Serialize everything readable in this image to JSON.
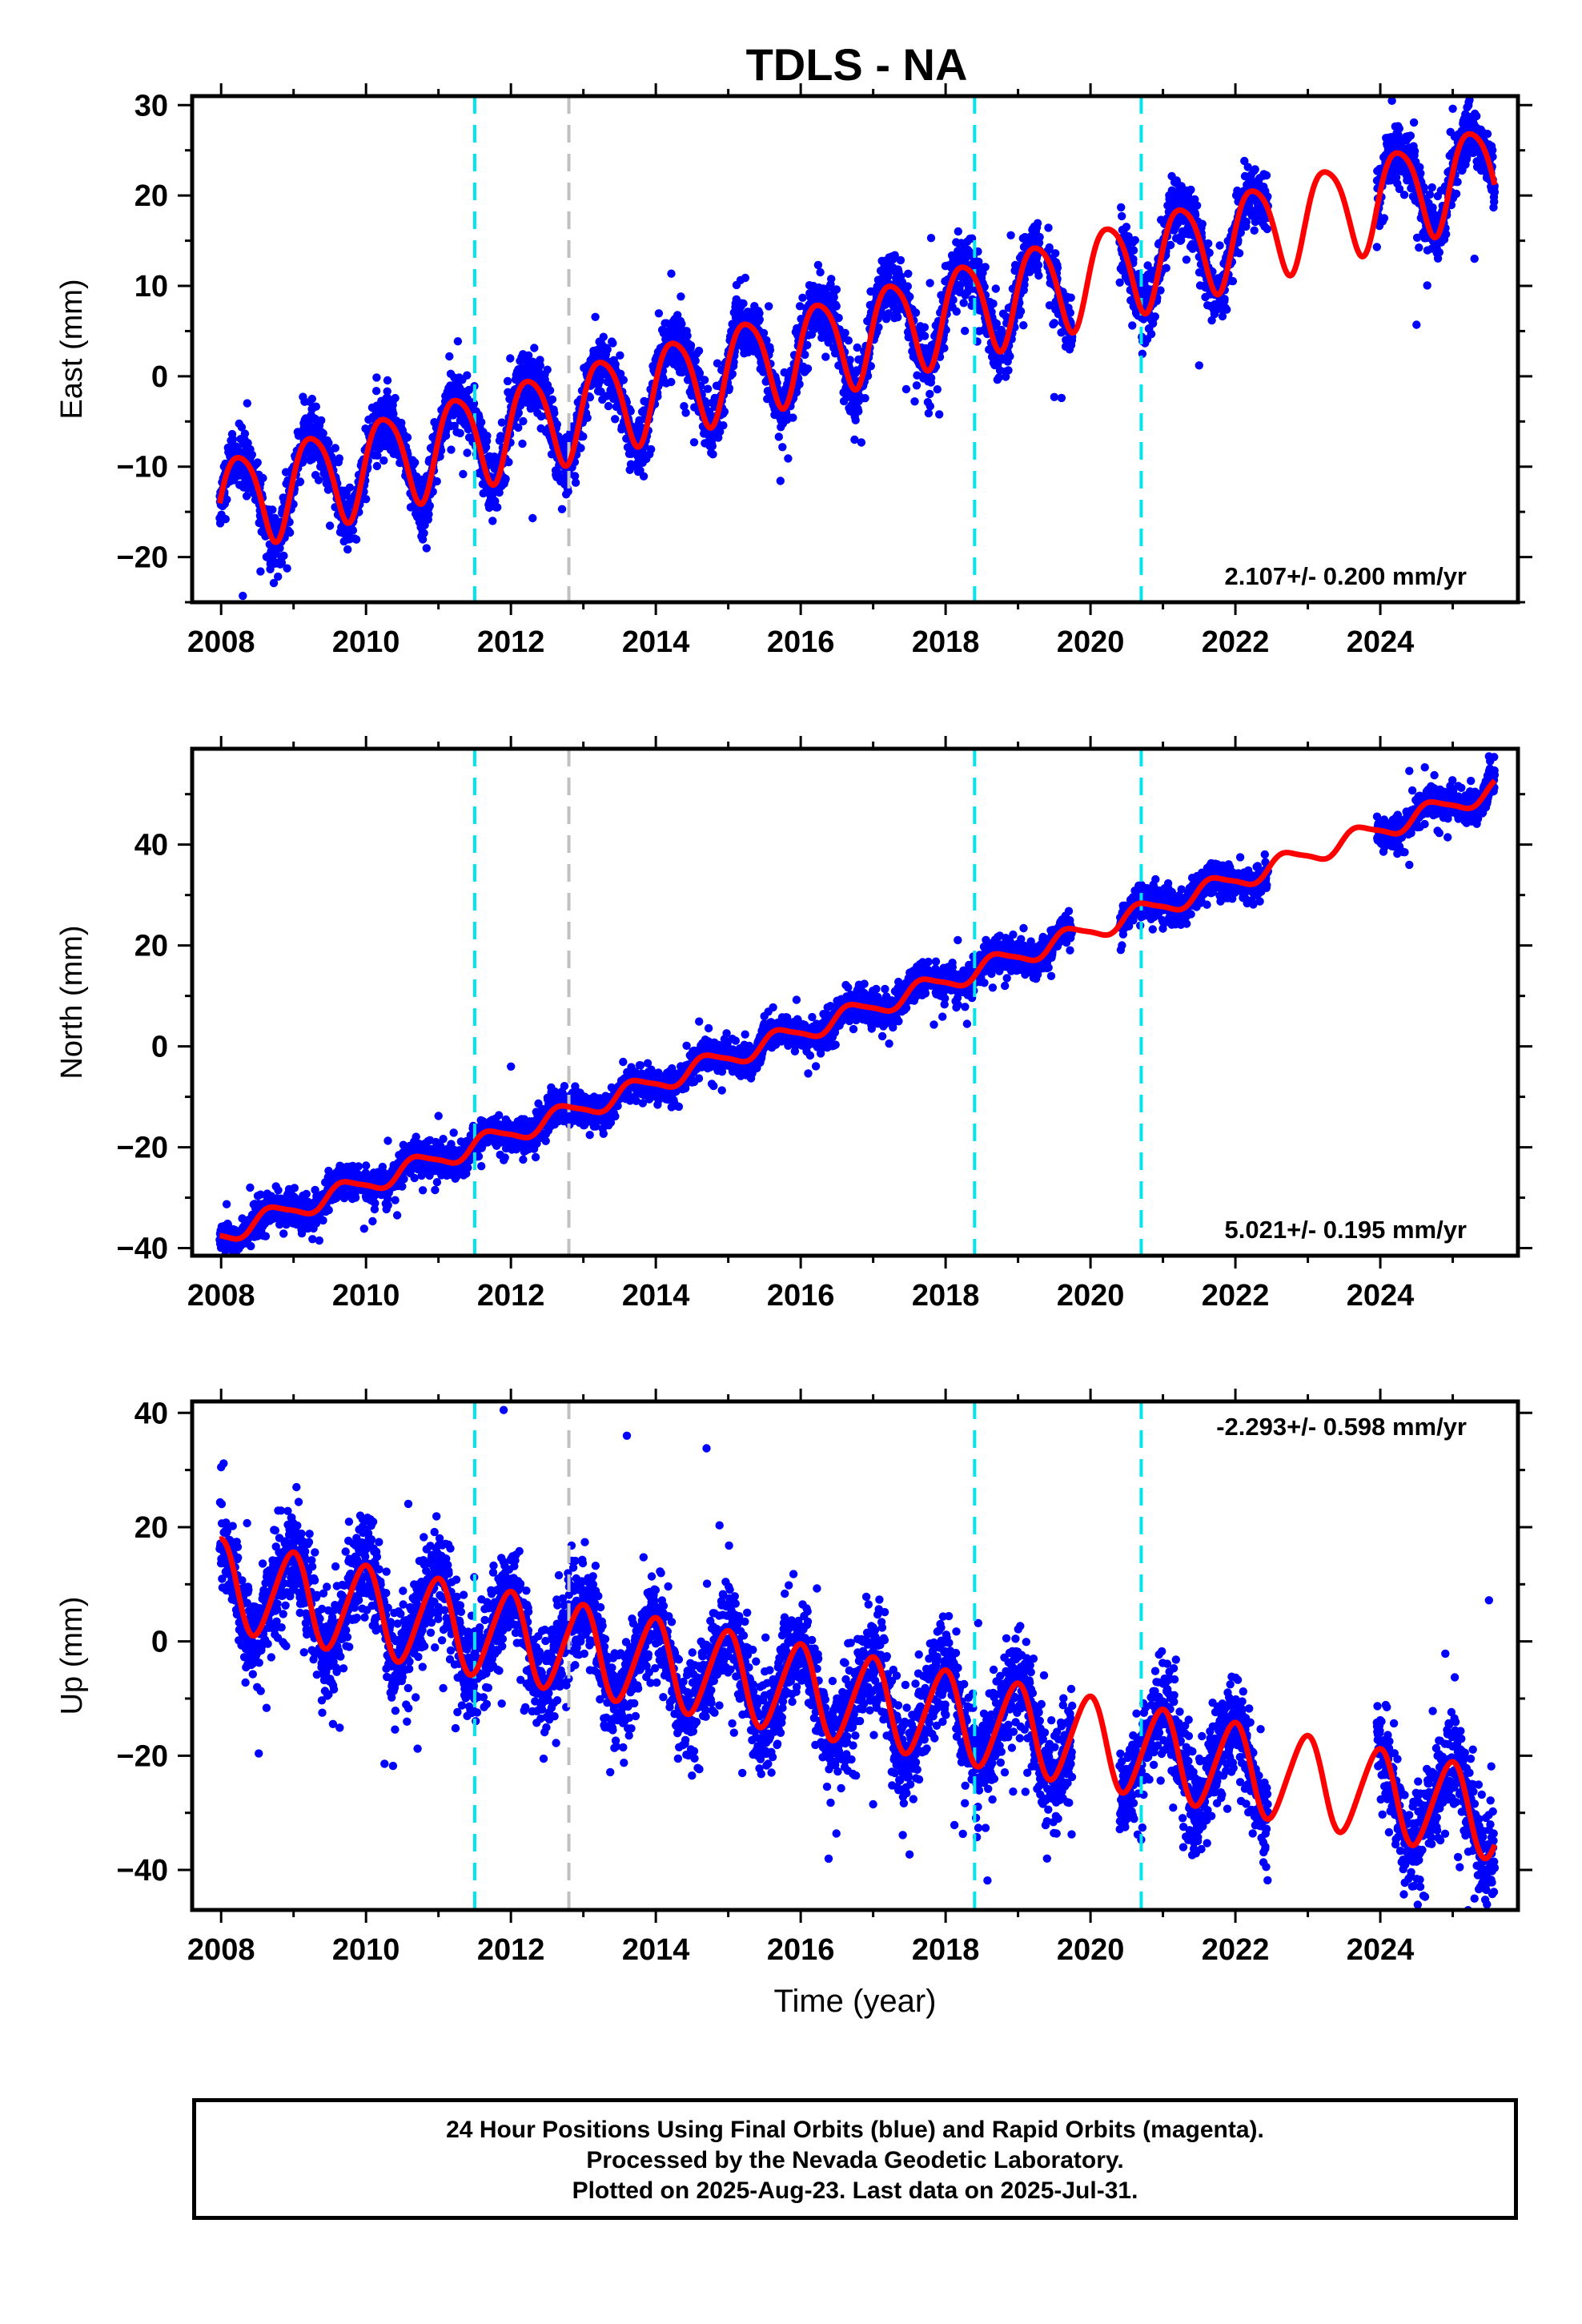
{
  "title": "TDLS - NA",
  "xlabel": "Time (year)",
  "footer": {
    "line1": "24 Hour Positions Using Final Orbits (blue) and Rapid Orbits (magenta).",
    "line2": "Processed by the Nevada Geodetic Laboratory.",
    "line3": "Plotted on 2025-Aug-23. Last data on 2025-Jul-31."
  },
  "colors": {
    "final_orbits": "#0000ff",
    "model_fit": "#ff0000",
    "equipment_change": "#00e5ee",
    "other_event": "#c0c0c0",
    "frame": "#000000"
  },
  "chart_data": [
    {
      "type": "scatter",
      "component": "east",
      "ylabel": "East (mm)",
      "xlim": [
        2007.6,
        2025.9
      ],
      "ylim": [
        -25,
        31
      ],
      "xticks": [
        2008,
        2010,
        2012,
        2014,
        2016,
        2018,
        2020,
        2022,
        2024
      ],
      "yticks": [
        -20,
        -10,
        0,
        10,
        20,
        30
      ],
      "rate_label": "2.107+/- 0.200 mm/yr",
      "rate_label_position": "bottom-right",
      "model": {
        "rate": 2.107,
        "offset_2008": -14.0,
        "amp_annual": 5.2,
        "phase_annual": 0.0,
        "amp_semi": 0.8,
        "phase_semi": 1.2
      },
      "scatter_sd": 1.6,
      "gaps": [
        [
          2019.75,
          2020.4
        ],
        [
          2022.45,
          2023.95
        ]
      ],
      "isolated_gaps": [
        [
          2019.3,
          2019.4
        ]
      ],
      "vlines": [
        {
          "x": 2011.5,
          "kind": "equipment_change"
        },
        {
          "x": 2012.8,
          "kind": "other_event"
        },
        {
          "x": 2018.4,
          "kind": "equipment_change"
        },
        {
          "x": 2020.7,
          "kind": "equipment_change"
        }
      ],
      "outliers": [
        [
          2008.3,
          -24.3
        ],
        [
          2019.5,
          -2.3
        ],
        [
          2019.6,
          -2.4
        ],
        [
          2021.5,
          1.2
        ],
        [
          2024.5,
          5.7
        ],
        [
          2025.3,
          13.0
        ],
        [
          2017.8,
          15.3
        ],
        [
          2018.9,
          15.6
        ],
        [
          2025.0,
          29.6
        ],
        [
          2012.3,
          -15.7
        ]
      ]
    },
    {
      "type": "scatter",
      "component": "north",
      "ylabel": "North (mm)",
      "xlim": [
        2007.6,
        2025.9
      ],
      "ylim": [
        -41.5,
        59
      ],
      "xticks": [
        2008,
        2010,
        2012,
        2014,
        2016,
        2018,
        2020,
        2022,
        2024
      ],
      "yticks": [
        -40,
        -20,
        0,
        20,
        40
      ],
      "rate_label": "5.021+/- 0.195 mm/yr",
      "rate_label_position": "bottom-right",
      "model": {
        "rate": 5.021,
        "offset_2008": -37.3,
        "amp_annual": 1.9,
        "phase_annual": 3.4,
        "amp_semi": 0.4,
        "phase_semi": 0.6
      },
      "scatter_sd": 1.5,
      "gaps": [
        [
          2019.75,
          2020.4
        ],
        [
          2022.45,
          2023.95
        ]
      ],
      "isolated_gaps": [],
      "vlines": [
        {
          "x": 2011.5,
          "kind": "equipment_change"
        },
        {
          "x": 2012.8,
          "kind": "other_event"
        },
        {
          "x": 2018.4,
          "kind": "equipment_change"
        },
        {
          "x": 2020.7,
          "kind": "equipment_change"
        }
      ],
      "outliers": [
        [
          2012.0,
          -4.0
        ],
        [
          2011.0,
          -13.8
        ],
        [
          2024.4,
          36.0
        ],
        [
          2025.5,
          57.5
        ],
        [
          2024.4,
          54.6
        ],
        [
          2008.4,
          -28.0
        ]
      ]
    },
    {
      "type": "scatter",
      "component": "up",
      "ylabel": "Up (mm)",
      "xlim": [
        2007.6,
        2025.9
      ],
      "ylim": [
        -47,
        42
      ],
      "xticks": [
        2008,
        2010,
        2012,
        2014,
        2016,
        2018,
        2020,
        2022,
        2024
      ],
      "yticks": [
        -40,
        -20,
        0,
        20,
        40
      ],
      "rate_label": "-2.293+/- 0.598 mm/yr",
      "rate_label_position": "top-right",
      "model": {
        "rate": -2.293,
        "offset_2008": 10.0,
        "amp_annual": 7.8,
        "phase_annual": 1.75,
        "amp_semi": 0.8,
        "phase_semi": 0.3
      },
      "scatter_sd": 4.2,
      "gaps": [
        [
          2019.75,
          2020.4
        ],
        [
          2022.45,
          2023.95
        ]
      ],
      "isolated_gaps": [],
      "vlines": [
        {
          "x": 2011.5,
          "kind": "equipment_change"
        },
        {
          "x": 2012.8,
          "kind": "other_event"
        },
        {
          "x": 2018.4,
          "kind": "equipment_change"
        },
        {
          "x": 2020.7,
          "kind": "equipment_change"
        }
      ],
      "outliers": [
        [
          2011.9,
          40.5
        ],
        [
          2013.6,
          36.0
        ],
        [
          2014.7,
          33.8
        ],
        [
          2008.0,
          30.5
        ],
        [
          2019.4,
          -38.0
        ],
        [
          2025.3,
          -45.0
        ],
        [
          2025.45,
          -40.0
        ],
        [
          2025.5,
          7.2
        ],
        [
          2021.5,
          -33.0
        ],
        [
          2017.0,
          -28.5
        ]
      ]
    }
  ]
}
